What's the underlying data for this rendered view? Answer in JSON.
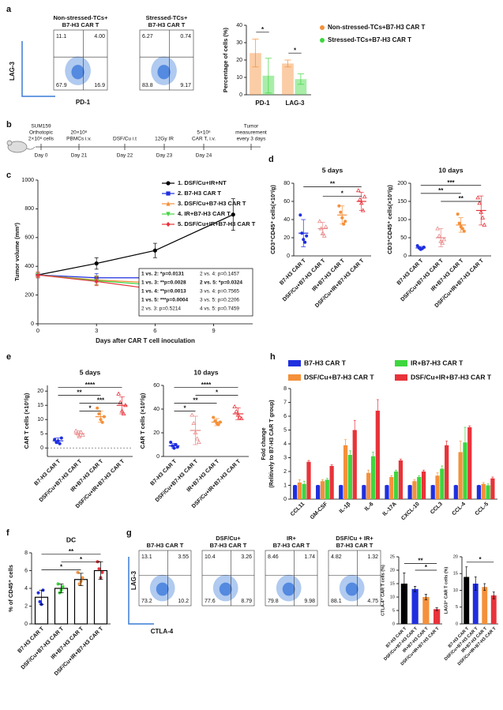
{
  "panels": [
    "a",
    "b",
    "c",
    "d",
    "e",
    "f",
    "g",
    "h"
  ],
  "timeline": {
    "events": [
      {
        "top": [
          "SUM159",
          "Orthotopic",
          "2×10⁶ cells"
        ],
        "day": "Day 0"
      },
      {
        "top": [
          "20×10⁶",
          "PBMCs i.v."
        ],
        "day": "Day 21"
      },
      {
        "top": [
          "DSF/Cu i.t"
        ],
        "day": "Day 22"
      },
      {
        "top": [
          "12Gy IR"
        ],
        "day": "Day 23"
      },
      {
        "top": [
          "5×10⁶",
          "CAR T, i.v."
        ],
        "day": "Day 24"
      },
      {
        "top": [
          "Tumor",
          "measurement",
          "every 3 days"
        ]
      }
    ]
  },
  "flow_panels": [
    {
      "xlabel": "PD-1",
      "ylabel": "LAG-3",
      "plots": [
        {
          "title": [
            "Non-stressed-TCs+",
            "B7-H3 CAR T"
          ],
          "quadrants": [
            "11.1",
            "4.00",
            "67.9",
            "16.9"
          ]
        },
        {
          "title": [
            "Stressed-TCs+",
            "B7-H3 CAR T"
          ],
          "quadrants": [
            "6.27",
            "0.74",
            "83.8",
            "9.17"
          ]
        }
      ]
    },
    {
      "xlabel": "CTLA-4",
      "ylabel": "LAG-3",
      "plots": [
        {
          "title": [
            "B7-H3 CAR T"
          ],
          "quadrants": [
            "13.1",
            "3.55",
            "73.2",
            "10.2"
          ]
        },
        {
          "title": [
            "DSF/Cu+",
            "B7-H3 CAR T"
          ],
          "quadrants": [
            "10.4",
            "3.26",
            "77.6",
            "8.79"
          ]
        },
        {
          "title": [
            "IR+",
            "B7-H3 CAR T"
          ],
          "quadrants": [
            "8.46",
            "1.74",
            "79.8",
            "9.98"
          ]
        },
        {
          "title": [
            "DSF/Cu + IR+",
            "B7-H3 CAR T"
          ],
          "quadrants": [
            "4.82",
            "1.32",
            "88.1",
            "4.75"
          ]
        }
      ]
    }
  ],
  "chart_data": [
    {
      "type": "bar",
      "ylabel": "Percentage of cells (%)",
      "categories": [
        "PD-1",
        "LAG-3"
      ],
      "series": [
        {
          "name": "Non-stressed-TCs+B7-H3 CAR T",
          "color": "#f5903a",
          "values": [
            24,
            18
          ],
          "errors": [
            8,
            2
          ]
        },
        {
          "name": "Stressed-TCs+B7-H3 CAR T",
          "color": "#3ed63e",
          "values": [
            11,
            9
          ],
          "errors": [
            10,
            3
          ]
        }
      ],
      "bar_opacity": 0.45,
      "ylim": [
        0,
        40
      ],
      "yticks": [
        0,
        10,
        20,
        30,
        40
      ],
      "significance": [
        "*",
        "*"
      ]
    },
    {
      "type": "line",
      "xlabel": "Days after CAR T cell inoculation",
      "ylabel": "Tumor volume (mm³)",
      "x": [
        0,
        3,
        6,
        10
      ],
      "xlim": [
        0,
        11
      ],
      "xticks": [
        0,
        3,
        6,
        9
      ],
      "ylim": [
        0,
        1000
      ],
      "yticks": [
        0,
        200,
        400,
        600,
        800,
        1000
      ],
      "series": [
        {
          "name": "1. DSF/Cu+IR+NT",
          "color": "#000000",
          "marker": "circle",
          "values": [
            340,
            420,
            510,
            760
          ],
          "errors": [
            20,
            40,
            50,
            110
          ]
        },
        {
          "name": "2. B7-H3 CAR T",
          "color": "#1f2fe0",
          "marker": "square",
          "values": [
            340,
            320,
            320,
            350
          ],
          "errors": [
            20,
            30,
            40,
            30
          ]
        },
        {
          "name": "3. DSF/Cu+B7-H3 CAR T",
          "color": "#f5903a",
          "marker": "triangle",
          "values": [
            340,
            305,
            285,
            260
          ],
          "errors": [
            20,
            30,
            40,
            40
          ]
        },
        {
          "name": "4. IR+B7-H3 CAR T",
          "color": "#3ed63e",
          "marker": "triangle-down",
          "values": [
            340,
            300,
            270,
            230
          ],
          "errors": [
            20,
            30,
            40,
            40
          ]
        },
        {
          "name": "5. DSF/Cu+IR+B7-H3 CAR T",
          "color": "#e8333a",
          "marker": "diamond",
          "values": [
            340,
            295,
            240,
            195
          ],
          "errors": [
            20,
            30,
            40,
            30
          ]
        }
      ],
      "stats": [
        [
          "1 vs. 2: *p=0.0131",
          "1 vs. 3: **p=0.0028",
          "1 vs. 4: **p=0.0013",
          "1 vs. 5: ***p=0.0004",
          "2 vs. 3: p=0.5214"
        ],
        [
          "2 vs. 4: p=0.1457",
          "2 vs. 5: *p=0.0324",
          "3 vs. 4: p=0.7565",
          "3 vs. 5: p=0.2206",
          "4 vs. 5: p=0.7459"
        ]
      ]
    },
    {
      "type": "dot",
      "title": "5 days",
      "ylabel": "CD3⁺CD45⁺ cells(×10³/g)",
      "categories": [
        "B7-H3 CAR T",
        "DSF/Cu+B7-H3 CAR T",
        "IR+B7-H3 CAR T",
        "DSF/Cu+IR+B7-H3 CAR T"
      ],
      "colors": [
        "#1f2fe0",
        "#e98a8a",
        "#f5903a",
        "#e8333a"
      ],
      "points": [
        [
          45,
          25,
          18,
          15,
          22
        ],
        [
          38,
          30,
          25,
          22,
          32
        ],
        [
          55,
          48,
          42,
          35,
          38
        ],
        [
          72,
          62,
          58,
          50,
          65
        ]
      ],
      "means": [
        25,
        30,
        45,
        60
      ],
      "errors": [
        15,
        7,
        10,
        10
      ],
      "ylim": [
        0,
        80
      ],
      "yticks": [
        0,
        20,
        40,
        60,
        80
      ],
      "significance": [
        "**",
        "*"
      ]
    },
    {
      "type": "dot",
      "title": "10 days",
      "ylabel": "CD3⁺CD45⁺ cells(×10³/g)",
      "categories": [
        "B7-H3 CAR T",
        "DSF/Cu+B7-H3 CAR T",
        "IR+B7-H3 CAR T",
        "DSF/Cu+IR+B7-H3 CAR T"
      ],
      "colors": [
        "#1f2fe0",
        "#e98a8a",
        "#f5903a",
        "#e8333a"
      ],
      "points": [
        [
          28,
          22,
          18,
          20,
          24
        ],
        [
          75,
          55,
          40,
          35,
          45
        ],
        [
          115,
          90,
          80,
          75,
          68
        ],
        [
          160,
          145,
          120,
          105,
          85
        ]
      ],
      "means": [
        22,
        50,
        85,
        125
      ],
      "errors": [
        4,
        25,
        20,
        40
      ],
      "ylim": [
        0,
        200
      ],
      "yticks": [
        0,
        50,
        100,
        150,
        200
      ],
      "significance": [
        "***",
        "**",
        "**"
      ]
    },
    {
      "type": "dot",
      "title": "5 days",
      "ylabel": "CAR T cells (×10³/g)",
      "categories": [
        "B7-H3 CAR T",
        "DSF/Cu+B7-H3 CAR T",
        "IR+B7-H3 CAR T",
        "DSF/Cu+IR+B7-H3 CAR T"
      ],
      "colors": [
        "#1f2fe0",
        "#e98a8a",
        "#f5903a",
        "#e8333a"
      ],
      "points": [
        [
          3,
          2,
          2.5,
          1.5,
          3.5
        ],
        [
          6,
          5,
          4,
          5.5,
          4.5
        ],
        [
          14,
          12,
          10,
          9,
          11
        ],
        [
          19,
          16,
          13,
          12,
          15
        ]
      ],
      "means": [
        2.5,
        5,
        11,
        15
      ],
      "errors": [
        1,
        1,
        2,
        3
      ],
      "ylim": [
        -3,
        22
      ],
      "yticks": [
        0,
        5,
        10,
        15,
        20
      ],
      "zero_line": true,
      "significance": [
        "****",
        "**",
        "***",
        "*"
      ]
    },
    {
      "type": "dot",
      "title": "10 days",
      "ylabel": "CAR T cells (×10³/g)",
      "categories": [
        "B7-H3 CAR T",
        "DSF/Cu+B7-H3 CAR T",
        "IR+B7-H3 CAR T",
        "DSF/Cu+IR+B7-H3 CAR T"
      ],
      "colors": [
        "#1f2fe0",
        "#e98a8a",
        "#f5903a",
        "#e8333a"
      ],
      "points": [
        [
          12,
          9,
          7,
          10,
          8
        ],
        [
          35,
          28,
          20,
          15,
          12
        ],
        [
          33,
          30,
          28,
          27,
          29
        ],
        [
          42,
          38,
          35,
          33,
          32
        ]
      ],
      "means": [
        9,
        22,
        29,
        36
      ],
      "errors": [
        2,
        12,
        3,
        5
      ],
      "ylim": [
        0,
        60
      ],
      "yticks": [
        0,
        20,
        40,
        60
      ],
      "significance": [
        "****",
        "*",
        "**",
        "*"
      ]
    },
    {
      "type": "bar",
      "ylabel": "Fold change",
      "ylabel2": "(Relitively to B7-H3 CAR T group)",
      "categories": [
        "CCL11",
        "GM-CSF",
        "IL-1β",
        "IL-6",
        "IL-17A",
        "CXCL-10",
        "CCL3",
        "CCL-4",
        "CCL-5"
      ],
      "series": [
        {
          "name": "B7-H3 CAR T",
          "color": "#1f2fe0",
          "values": [
            1,
            1,
            1,
            1,
            1,
            1,
            1,
            1,
            1
          ],
          "errors": [
            0,
            0,
            0,
            0,
            0,
            0,
            0,
            0,
            0
          ]
        },
        {
          "name": "DSF/Cu+B7-H3 CAR T",
          "color": "#f5903a",
          "values": [
            1.2,
            1.3,
            3.9,
            1.9,
            1.6,
            1.3,
            1.7,
            3.4,
            1.1
          ],
          "errors": [
            0.2,
            0.1,
            0.4,
            0.2,
            0.1,
            0.1,
            0.2,
            0.8,
            0.1
          ]
        },
        {
          "name": "IR+B7-H3 CAR T",
          "color": "#3ed63e",
          "values": [
            1.1,
            1.4,
            3.2,
            3.1,
            2.0,
            1.6,
            2.2,
            4.1,
            1.0
          ],
          "errors": [
            0.2,
            0.1,
            0.3,
            0.3,
            0.1,
            0.1,
            0.2,
            1.1,
            0.1
          ]
        },
        {
          "name": "DSF/Cu+IR+B7-H3 CAR T",
          "color": "#e8333a",
          "values": [
            2.7,
            2.4,
            5.0,
            6.4,
            2.8,
            2.0,
            3.9,
            5.2,
            1.5
          ],
          "errors": [
            0.1,
            0.1,
            0.7,
            0.8,
            0.1,
            0.1,
            0.3,
            0.1,
            0.1
          ]
        }
      ],
      "ylim": [
        0,
        8
      ],
      "yticks": [
        0,
        1,
        2,
        3,
        4,
        5,
        6,
        7,
        8
      ]
    },
    {
      "type": "dot",
      "title": "DC",
      "ylabel": "% of CD45⁺ cells",
      "bars": true,
      "categories": [
        "B7-H3 CAR T",
        "DSF/Cu+B7-H3 CAR T",
        "IR+B7-H3 CAR T",
        "DSF/Cu+IR+B7-H3 CAR T"
      ],
      "colors": [
        "#1f2fe0",
        "#3ed63e",
        "#f5903a",
        "#e8333a"
      ],
      "points": [
        [
          3.5,
          2.5,
          2.2,
          3.8
        ],
        [
          4.5,
          3.5,
          3.8,
          4.2
        ],
        [
          5.8,
          4.5,
          4.8,
          5.2
        ],
        [
          7.0,
          6.2,
          5.2,
          5.8
        ]
      ],
      "means": [
        3,
        4,
        5,
        6
      ],
      "errors": [
        0.8,
        0.5,
        0.7,
        1.0
      ],
      "ylim": [
        0,
        8
      ],
      "yticks": [
        0,
        2,
        4,
        6,
        8
      ],
      "significance": [
        "**",
        "*",
        "*"
      ]
    },
    {
      "type": "bar",
      "ylabel": "CTLA-4⁺ CAR T cells (%)",
      "categories": [
        "B7-H3 CAR T",
        "DSF/Cu+B7-H3 CAR T",
        "IR+B7-H3 CAR T",
        "DSF/Cu+IR+B7-H3 CAR T"
      ],
      "colors": [
        "#000000",
        "#1f2fe0",
        "#f5903a",
        "#e8333a"
      ],
      "values": [
        15,
        13,
        10,
        5.5
      ],
      "errors": [
        4,
        1,
        1,
        0.5
      ],
      "ylim": [
        0,
        25
      ],
      "yticks": [
        0,
        5,
        10,
        15,
        20,
        25
      ],
      "significance": [
        "**",
        "*"
      ]
    },
    {
      "type": "bar",
      "ylabel": "LAG3⁺ CAR T cells (%)",
      "categories": [
        "B7-H3 CAR T",
        "DSF/Cu+B7-H3 CAR T",
        "IR+B7-H3 CAR T",
        "DSF/Cu+IR+B7-H3 CAR T"
      ],
      "colors": [
        "#000000",
        "#1f2fe0",
        "#f5903a",
        "#e8333a"
      ],
      "values": [
        14,
        12,
        11,
        8.5
      ],
      "errors": [
        3,
        2,
        1,
        1
      ],
      "ylim": [
        0,
        20
      ],
      "yticks": [
        0,
        5,
        10,
        15,
        20
      ],
      "significance": [
        "*"
      ]
    }
  ]
}
